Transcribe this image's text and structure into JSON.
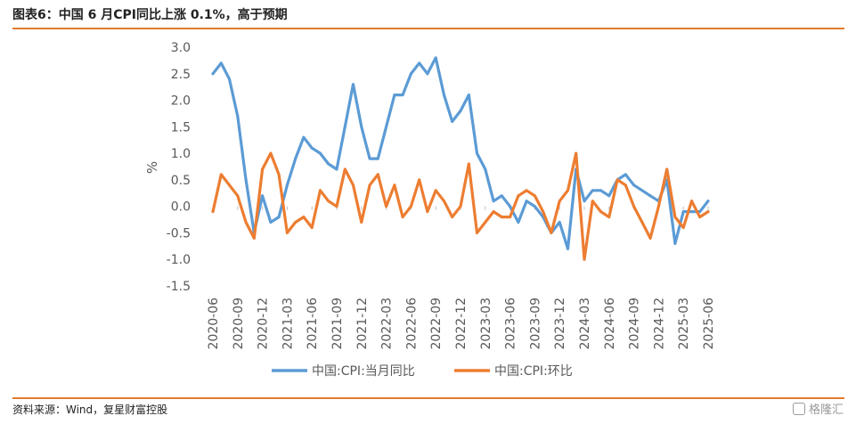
{
  "header": {
    "title": "图表6：中国 6 月CPI同比上涨 0.1%，高于预期"
  },
  "footer": {
    "source": "资料来源：Wind，复星财富控股",
    "watermark": "格隆汇"
  },
  "colors": {
    "accent": "#E07B2E",
    "series_yoy": "#5B9BD5",
    "series_mom": "#ED7D31"
  },
  "chart_data": {
    "type": "line",
    "ylabel": "%",
    "ylim": [
      -1.5,
      3.0
    ],
    "yticks": [
      "3.0",
      "2.5",
      "2.0",
      "1.5",
      "1.0",
      "0.5",
      "0.0",
      "-0.5",
      "-1.0",
      "-1.5"
    ],
    "legend_position": "bottom",
    "x": [
      "2020-06",
      "2020-07",
      "2020-08",
      "2020-09",
      "2020-10",
      "2020-11",
      "2020-12",
      "2021-01",
      "2021-02",
      "2021-03",
      "2021-04",
      "2021-05",
      "2021-06",
      "2021-07",
      "2021-08",
      "2021-09",
      "2021-10",
      "2021-11",
      "2021-12",
      "2022-01",
      "2022-02",
      "2022-03",
      "2022-04",
      "2022-05",
      "2022-06",
      "2022-07",
      "2022-08",
      "2022-09",
      "2022-10",
      "2022-11",
      "2022-12",
      "2023-01",
      "2023-02",
      "2023-03",
      "2023-04",
      "2023-05",
      "2023-06",
      "2023-07",
      "2023-08",
      "2023-09",
      "2023-10",
      "2023-11",
      "2023-12",
      "2024-01",
      "2024-02",
      "2024-03",
      "2024-04",
      "2024-05",
      "2024-06",
      "2024-07",
      "2024-08",
      "2024-09",
      "2024-10",
      "2024-11",
      "2024-12",
      "2025-01",
      "2025-02",
      "2025-03",
      "2025-04",
      "2025-05",
      "2025-06"
    ],
    "xticks": [
      "2020-06",
      "2020-09",
      "2020-12",
      "2021-03",
      "2021-06",
      "2021-09",
      "2021-12",
      "2022-03",
      "2022-06",
      "2022-09",
      "2022-12",
      "2023-03",
      "2023-06",
      "2023-09",
      "2023-12",
      "2024-03",
      "2024-06",
      "2024-09",
      "2024-12",
      "2025-03",
      "2025-06"
    ],
    "series": [
      {
        "name": "中国:CPI:当月同比",
        "values": [
          2.5,
          2.7,
          2.4,
          1.7,
          0.5,
          -0.5,
          0.2,
          -0.3,
          -0.2,
          0.4,
          0.9,
          1.3,
          1.1,
          1.0,
          0.8,
          0.7,
          1.5,
          2.3,
          1.5,
          0.9,
          0.9,
          1.5,
          2.1,
          2.1,
          2.5,
          2.7,
          2.5,
          2.8,
          2.1,
          1.6,
          1.8,
          2.1,
          1.0,
          0.7,
          0.1,
          0.2,
          0.0,
          -0.3,
          0.1,
          0.0,
          -0.2,
          -0.5,
          -0.3,
          -0.8,
          0.7,
          0.1,
          0.3,
          0.3,
          0.2,
          0.5,
          0.6,
          0.4,
          0.3,
          0.2,
          0.1,
          0.5,
          -0.7,
          -0.1,
          -0.1,
          -0.1,
          0.1
        ]
      },
      {
        "name": "中国:CPI:环比",
        "values": [
          -0.1,
          0.6,
          0.4,
          0.2,
          -0.3,
          -0.6,
          0.7,
          1.0,
          0.6,
          -0.5,
          -0.3,
          -0.2,
          -0.4,
          0.3,
          0.1,
          0.0,
          0.7,
          0.4,
          -0.3,
          0.4,
          0.6,
          0.0,
          0.4,
          -0.2,
          0.0,
          0.5,
          -0.1,
          0.3,
          0.1,
          -0.2,
          0.0,
          0.8,
          -0.5,
          -0.3,
          -0.1,
          -0.2,
          -0.2,
          0.2,
          0.3,
          0.2,
          -0.1,
          -0.5,
          0.1,
          0.3,
          1.0,
          -1.0,
          0.1,
          -0.1,
          -0.2,
          0.5,
          0.4,
          0.0,
          -0.3,
          -0.6,
          0.0,
          0.7,
          -0.2,
          -0.4,
          0.1,
          -0.2,
          -0.1
        ]
      }
    ]
  }
}
